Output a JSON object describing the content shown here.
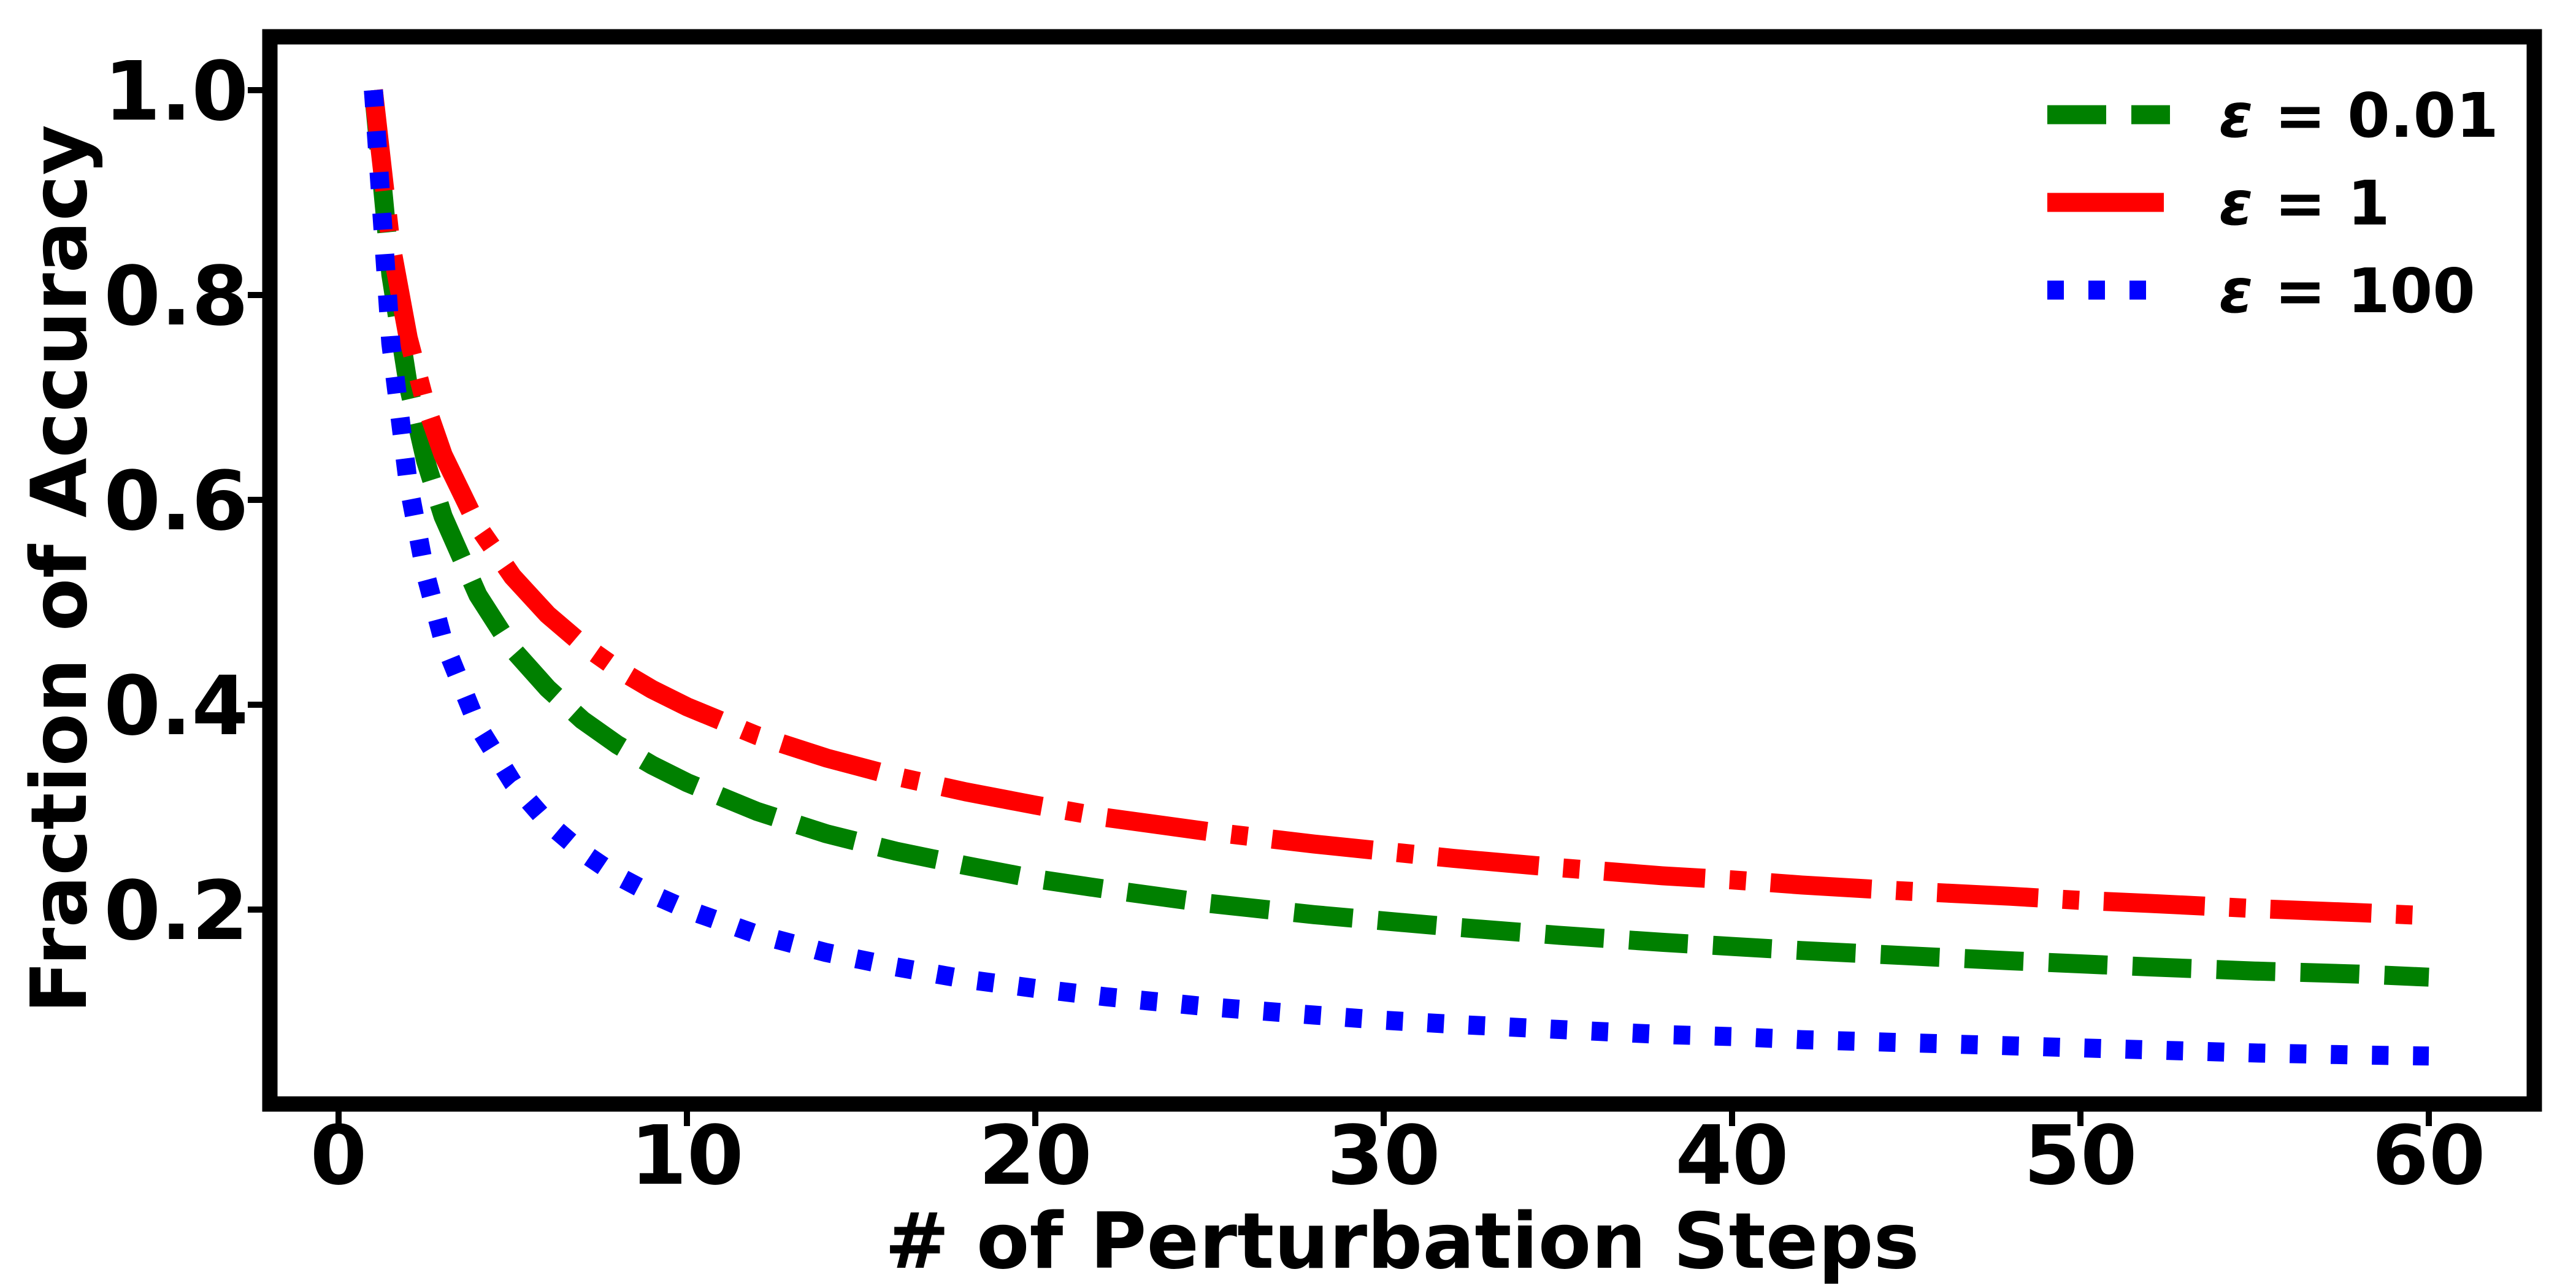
{
  "figure": {
    "xlabel": "# of Perturbation Steps",
    "ylabel": "Fraction of Accuracy"
  },
  "axes": {
    "x_tick_labels": [
      "0",
      "10",
      "20",
      "30",
      "40",
      "50",
      "60"
    ],
    "x_tick_values": [
      0,
      10,
      20,
      30,
      40,
      50,
      60
    ],
    "y_tick_labels": [
      "1.0",
      "0.8",
      "0.6",
      "0.4",
      "0.2"
    ],
    "y_tick_values": [
      1.0,
      0.8,
      0.6,
      0.4,
      0.2
    ],
    "frame_color": "#000000",
    "background_color": "#ffffff"
  },
  "legend": {
    "position": "upper right",
    "entries": [
      {
        "label": "ε = 0.01",
        "color": "#008000",
        "linestyle": "dashed"
      },
      {
        "label": "ε = 1",
        "color": "#ff0000",
        "linestyle": "dashdot"
      },
      {
        "label": "ε = 100",
        "color": "#0000ff",
        "linestyle": "dotted"
      }
    ]
  },
  "chart_data": {
    "type": "line",
    "title": "",
    "xlabel": "# of Perturbation Steps",
    "ylabel": "Fraction of Accuracy",
    "xlim": [
      -2,
      63
    ],
    "ylim": [
      0,
      1.05
    ],
    "grid": false,
    "legend_position": "upper right",
    "x": [
      1,
      1.5,
      2,
      2.5,
      3,
      4,
      5,
      6,
      7,
      8,
      9,
      10,
      12,
      14,
      16,
      18,
      20,
      22,
      25,
      28,
      30,
      32,
      35,
      38,
      40,
      42,
      45,
      48,
      50,
      52,
      55,
      58,
      60
    ],
    "series": [
      {
        "name": "ε = 0.01",
        "color": "#008000",
        "linestyle": "dashed",
        "values": [
          1.0,
          0.82,
          0.712,
          0.638,
          0.584,
          0.507,
          0.454,
          0.416,
          0.385,
          0.361,
          0.341,
          0.324,
          0.296,
          0.274,
          0.257,
          0.243,
          0.23,
          0.22,
          0.206,
          0.195,
          0.189,
          0.183,
          0.175,
          0.168,
          0.164,
          0.16,
          0.155,
          0.15,
          0.147,
          0.144,
          0.14,
          0.137,
          0.134
        ]
      },
      {
        "name": "ε = 1",
        "color": "#ff0000",
        "linestyle": "dashdot",
        "values": [
          1.0,
          0.85,
          0.758,
          0.693,
          0.644,
          0.574,
          0.525,
          0.488,
          0.459,
          0.435,
          0.415,
          0.398,
          0.37,
          0.348,
          0.33,
          0.315,
          0.302,
          0.29,
          0.276,
          0.264,
          0.257,
          0.25,
          0.241,
          0.233,
          0.229,
          0.224,
          0.218,
          0.213,
          0.209,
          0.206,
          0.201,
          0.197,
          0.194
        ]
      },
      {
        "name": "ε = 100",
        "color": "#0000ff",
        "linestyle": "dotted",
        "values": [
          1.0,
          0.753,
          0.616,
          0.527,
          0.463,
          0.379,
          0.324,
          0.285,
          0.256,
          0.233,
          0.215,
          0.2,
          0.176,
          0.158,
          0.144,
          0.132,
          0.123,
          0.115,
          0.105,
          0.097,
          0.092,
          0.088,
          0.083,
          0.078,
          0.076,
          0.073,
          0.07,
          0.067,
          0.065,
          0.063,
          0.06,
          0.058,
          0.057
        ]
      }
    ]
  }
}
